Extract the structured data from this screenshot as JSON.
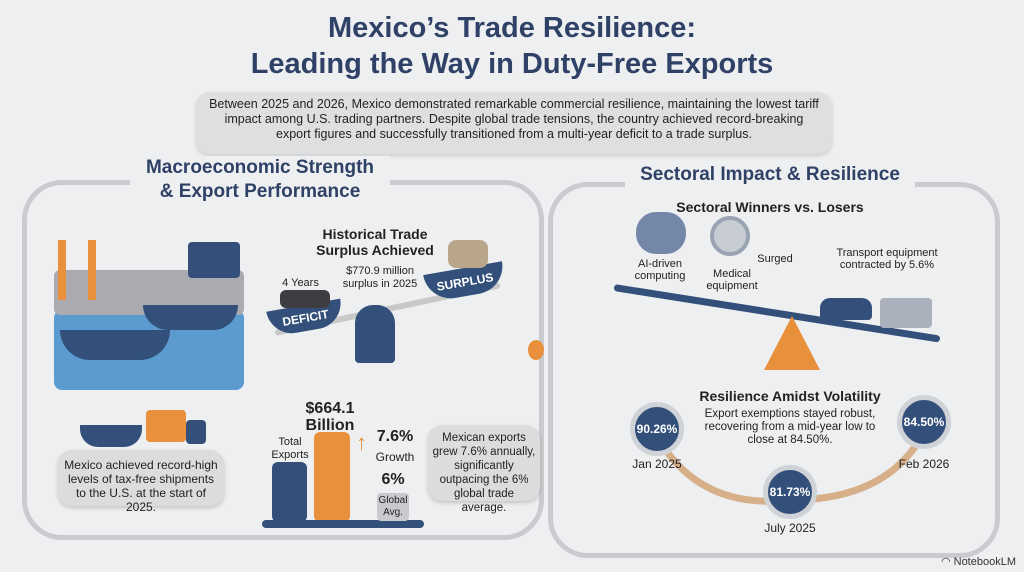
{
  "header": {
    "title_line1": "Mexico’s Trade Resilience:",
    "title_line2": "Leading the Way in Duty-Free Exports",
    "intro": "Between 2025 and 2026, Mexico demonstrated remarkable commercial resilience, maintaining the lowest tariff impact among U.S. trading partners. Despite global trade tensions, the country achieved record-breaking export figures and successfully transitioned from a multi-year deficit to a trade surplus."
  },
  "left": {
    "title_line1": "Macroeconomic Strength",
    "title_line2": "& Export Performance",
    "surplus": {
      "title_line1": "Historical Trade",
      "title_line2": "Surplus Achieved",
      "years": "4 Years",
      "amount_line1": "$770.9 million",
      "amount_line2": "surplus in 2025",
      "deficit_label": "DEFICIT",
      "surplus_label": "SURPLUS"
    },
    "shipments": "Mexico achieved record-high levels of tax-free shipments to the U.S. at the start of 2025.",
    "exports": {
      "value_line1": "$664.1",
      "value_line2": "Billion",
      "total_label": "Total Exports",
      "growth_value": "7.6%",
      "growth_label": "Growth",
      "global_value": "6%",
      "global_label": "Global Avg."
    },
    "growth_note": "Mexican exports grew 7.6% annually, significantly outpacing the 6% global trade average."
  },
  "right": {
    "title": "Sectoral Impact & Resilience",
    "winners_title": "Sectoral Winners vs. Losers",
    "ai": "AI-driven computing",
    "medical": "Medical equipment",
    "surged": "Surged",
    "transport": "Transport equipment contracted by 5.6%",
    "resilience": {
      "title": "Resilience Amidst Volatility",
      "text": "Export exemptions stayed robust, recovering from a mid-year low to close at 84.50%.",
      "points": [
        {
          "value": "90.26%",
          "label": "Jan 2025"
        },
        {
          "value": "81.73%",
          "label": "July 2025"
        },
        {
          "value": "84.50%",
          "label": "Feb 2026"
        }
      ]
    }
  },
  "footer": {
    "brand": "NotebookLM"
  },
  "colors": {
    "navy": "#33507a",
    "orange": "#e8903c",
    "title": "#2f4166"
  }
}
